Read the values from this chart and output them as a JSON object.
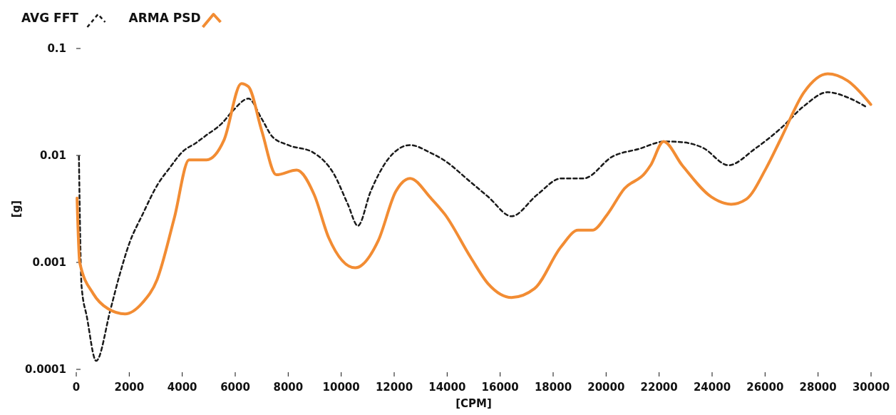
{
  "chart_data": {
    "type": "line",
    "xlabel": "[CPM]",
    "ylabel": "[g]",
    "log": "y",
    "grid": false,
    "legend": "top left",
    "xlim": [
      0,
      30000
    ],
    "xticks": [
      0,
      2000,
      4000,
      6000,
      8000,
      10000,
      12000,
      14000,
      16000,
      18000,
      20000,
      22000,
      24000,
      26000,
      28000,
      30000
    ],
    "ylim": [
      0.0001,
      0.1
    ],
    "yticks": [
      0.0001,
      0.001,
      0.01,
      0.1
    ],
    "series": [
      {
        "name": "AVG FFT",
        "color": "#1a1a1a",
        "line_style": "dashed",
        "x": [
          100,
          200,
          400,
          750,
          1300,
          1620,
          2000,
          2500,
          3100,
          3500,
          4040,
          4500,
          4900,
          5500,
          5900,
          6500,
          7000,
          7400,
          8000,
          8930,
          9740,
          10250,
          10630,
          11110,
          11780,
          12600,
          13400,
          13800,
          14900,
          15550,
          16430,
          17400,
          18300,
          19150,
          20250,
          21230,
          22220,
          22870,
          23650,
          24620,
          25610,
          26600,
          27470,
          28360,
          29220,
          29860
        ],
        "values": [
          0.0098,
          0.0006,
          0.00031,
          0.00012,
          0.00037,
          0.00074,
          0.0015,
          0.0028,
          0.0055,
          0.0075,
          0.011,
          0.013,
          0.0154,
          0.02,
          0.026,
          0.034,
          0.022,
          0.015,
          0.0125,
          0.0107,
          0.0066,
          0.0035,
          0.0022,
          0.0046,
          0.0093,
          0.0125,
          0.0105,
          0.0093,
          0.0056,
          0.0041,
          0.0027,
          0.0043,
          0.0061,
          0.0061,
          0.0098,
          0.0115,
          0.0135,
          0.0133,
          0.0118,
          0.0081,
          0.0115,
          0.018,
          0.029,
          0.039,
          0.034,
          0.028
        ]
      },
      {
        "name": "ARMA PSD",
        "color": "#f28c33",
        "line_style": "solid",
        "x": [
          30,
          130,
          640,
          1190,
          1840,
          2500,
          3050,
          3700,
          4260,
          4920,
          5580,
          6230,
          6500,
          7000,
          7550,
          8320,
          8980,
          9530,
          10530,
          11400,
          12060,
          12600,
          13380,
          13920,
          14900,
          15550,
          16430,
          17300,
          18300,
          18940,
          19480,
          20040,
          20690,
          21460,
          21680,
          22170,
          22870,
          23970,
          24720,
          25290,
          26040,
          26600,
          27470,
          28360,
          29110,
          29990
        ],
        "values": [
          0.004,
          0.001,
          0.00051,
          0.00037,
          0.00033,
          0.00042,
          0.00069,
          0.0026,
          0.0091,
          0.0091,
          0.014,
          0.047,
          0.044,
          0.017,
          0.0066,
          0.0073,
          0.0043,
          0.0017,
          0.00089,
          0.0016,
          0.0046,
          0.0061,
          0.004,
          0.0028,
          0.0011,
          0.00063,
          0.00047,
          0.00057,
          0.0014,
          0.002,
          0.002,
          0.0028,
          0.0049,
          0.0068,
          0.0081,
          0.0135,
          0.0081,
          0.0041,
          0.0035,
          0.0039,
          0.0076,
          0.0144,
          0.039,
          0.058,
          0.05,
          0.03
        ]
      }
    ]
  }
}
